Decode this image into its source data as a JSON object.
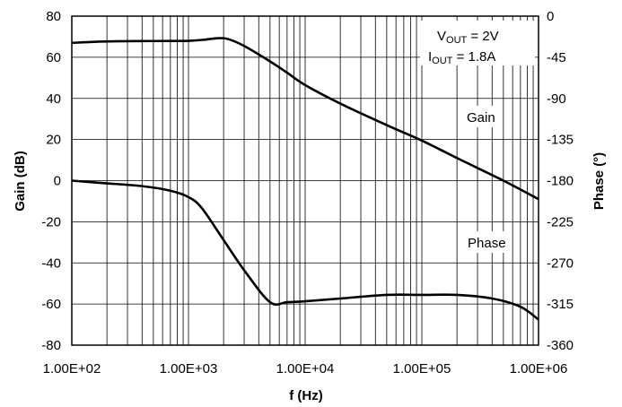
{
  "chart_data": {
    "type": "line",
    "x_scale": "log",
    "xlim": [
      100,
      1000000
    ],
    "ylim_left": [
      -80,
      80
    ],
    "ylim_right": [
      -360,
      0
    ],
    "grid": true,
    "xlabel": "f (Hz)",
    "ylabel_left": "Gain (dB)",
    "ylabel_right": "Phase (°)",
    "x_ticks": [
      100,
      1000,
      10000,
      100000,
      1000000
    ],
    "x_tick_labels": [
      "1.00E+02",
      "1.00E+03",
      "1.00E+04",
      "1.00E+05",
      "1.00E+06"
    ],
    "y_left_ticks": [
      80,
      60,
      40,
      20,
      0,
      -20,
      -40,
      -60,
      -80
    ],
    "y_left_tick_labels": [
      "80",
      "60",
      "40",
      "20",
      "0",
      "-20",
      "-40",
      "-60",
      "-80"
    ],
    "y_right_ticks": [
      0,
      -45,
      -90,
      -135,
      -180,
      -225,
      -270,
      -315,
      -360
    ],
    "y_right_tick_labels": [
      "0",
      "-45",
      "-90",
      "-135",
      "-180",
      "-225",
      "-270",
      "-315",
      "-360"
    ],
    "annotations": {
      "vout_prefix": "V",
      "vout_sub": "OUT",
      "vout_value": " = 2V",
      "iout_prefix": "I",
      "iout_sub": "OUT",
      "iout_value": " = 1.8A"
    },
    "series": [
      {
        "name": "Gain",
        "axis": "left",
        "x": [
          100,
          200,
          500,
          1000,
          1400,
          1800,
          2200,
          3000,
          5000,
          7000,
          10000,
          20000,
          50000,
          100000,
          200000,
          500000,
          1000000
        ],
        "y": [
          67,
          67.7,
          67.9,
          68,
          68.6,
          69.3,
          68.8,
          65.5,
          58,
          52.5,
          46.5,
          37.5,
          27,
          19.5,
          11,
          0,
          -9
        ]
      },
      {
        "name": "Phase",
        "axis": "right",
        "x": [
          100,
          200,
          400,
          700,
          1000,
          1300,
          2000,
          3000,
          5000,
          7000,
          10000,
          20000,
          50000,
          100000,
          200000,
          400000,
          700000,
          1000000
        ],
        "y": [
          -180,
          -183,
          -186,
          -191,
          -198,
          -210,
          -245,
          -278,
          -313,
          -313,
          -312,
          -309,
          -305,
          -305,
          -305,
          -309,
          -318,
          -332
        ]
      }
    ]
  }
}
